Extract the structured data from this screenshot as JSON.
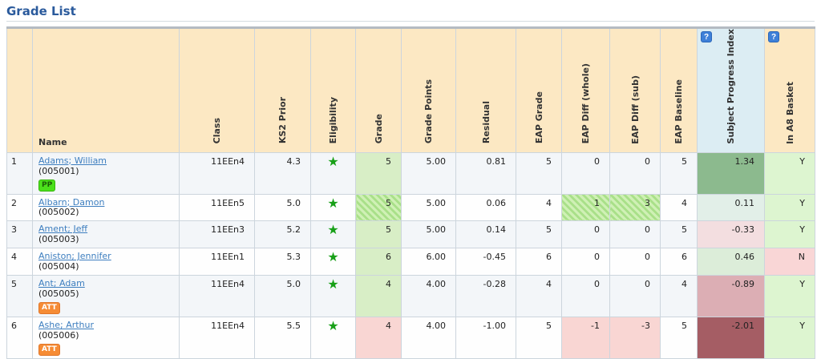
{
  "page": {
    "title": "Grade List"
  },
  "icons": {
    "help": "?",
    "eligibility_star": "★"
  },
  "colors": {
    "title_blue": "#2a5a9c",
    "header_cream": "#fce8c3",
    "spi_header_blue": "#dcedf3",
    "help_button_blue": "#3e80d8",
    "link_blue": "#3d7ebf",
    "star_green": "#18a018",
    "badge_pp_green": "#4be01b",
    "badge_att_orange": "#f68c35"
  },
  "table": {
    "columns": [
      {
        "key": "num",
        "label": "",
        "vertical": false,
        "help": false
      },
      {
        "key": "name",
        "label": "Name",
        "vertical": false,
        "help": false
      },
      {
        "key": "class",
        "label": "Class",
        "vertical": true,
        "help": false
      },
      {
        "key": "ks2",
        "label": "KS2 Prior",
        "vertical": true,
        "help": false
      },
      {
        "key": "elig",
        "label": "Eligibility",
        "vertical": true,
        "help": false
      },
      {
        "key": "grade",
        "label": "Grade",
        "vertical": true,
        "help": false
      },
      {
        "key": "points",
        "label": "Grade Points",
        "vertical": true,
        "help": false
      },
      {
        "key": "residual",
        "label": "Residual",
        "vertical": true,
        "help": false
      },
      {
        "key": "eap_grade",
        "label": "EAP Grade",
        "vertical": true,
        "help": false
      },
      {
        "key": "eap_diff_whole",
        "label": "EAP Diff (whole)",
        "vertical": true,
        "help": false
      },
      {
        "key": "eap_diff_sub",
        "label": "EAP Diff (sub)",
        "vertical": true,
        "help": false
      },
      {
        "key": "eap_baseline",
        "label": "EAP Baseline",
        "vertical": true,
        "help": false
      },
      {
        "key": "spi",
        "label": "Subject Progress Index",
        "vertical": true,
        "help": true
      },
      {
        "key": "a8",
        "label": "In A8 Basket",
        "vertical": true,
        "help": true
      }
    ],
    "rows": [
      {
        "num": "1",
        "name": "Adams; William",
        "id": "(005001)",
        "badges": [
          {
            "label": "PP",
            "type": "pp"
          }
        ],
        "class": "11EEn4",
        "ks2": "4.3",
        "eligible": true,
        "grade": "5",
        "grade_tone": "green",
        "points": "5.00",
        "residual": "0.81",
        "eap_grade": "5",
        "eap_diff_whole": "0",
        "eap_diff_whole_tone": "",
        "eap_diff_sub": "0",
        "eap_diff_sub_tone": "",
        "eap_baseline": "5",
        "spi": "1.34",
        "spi_color": "#8cba8e",
        "a8": "Y",
        "a8_tone": "green"
      },
      {
        "num": "2",
        "name": "Albarn; Damon",
        "id": "(005002)",
        "badges": [],
        "class": "11EEn5",
        "ks2": "5.0",
        "eligible": true,
        "grade": "5",
        "grade_tone": "hatch",
        "points": "5.00",
        "residual": "0.06",
        "eap_grade": "4",
        "eap_diff_whole": "1",
        "eap_diff_whole_tone": "hatch",
        "eap_diff_sub": "3",
        "eap_diff_sub_tone": "hatch",
        "eap_baseline": "4",
        "spi": "0.11",
        "spi_color": "#e2efe8",
        "a8": "Y",
        "a8_tone": "green"
      },
      {
        "num": "3",
        "name": "Ament; Jeff",
        "id": "(005003)",
        "badges": [],
        "class": "11EEn3",
        "ks2": "5.2",
        "eligible": true,
        "grade": "5",
        "grade_tone": "green",
        "points": "5.00",
        "residual": "0.14",
        "eap_grade": "5",
        "eap_diff_whole": "0",
        "eap_diff_whole_tone": "",
        "eap_diff_sub": "0",
        "eap_diff_sub_tone": "",
        "eap_baseline": "5",
        "spi": "-0.33",
        "spi_color": "#f3dee0",
        "a8": "Y",
        "a8_tone": "green"
      },
      {
        "num": "4",
        "name": "Aniston; Jennifer",
        "id": "(005004)",
        "badges": [],
        "class": "11EEn1",
        "ks2": "5.3",
        "eligible": true,
        "grade": "6",
        "grade_tone": "green",
        "points": "6.00",
        "residual": "-0.45",
        "eap_grade": "6",
        "eap_diff_whole": "0",
        "eap_diff_whole_tone": "",
        "eap_diff_sub": "0",
        "eap_diff_sub_tone": "",
        "eap_baseline": "6",
        "spi": "0.46",
        "spi_color": "#dcedd9",
        "a8": "N",
        "a8_tone": "pink"
      },
      {
        "num": "5",
        "name": "Ant; Adam",
        "id": "(005005)",
        "badges": [
          {
            "label": "ATT",
            "type": "att"
          }
        ],
        "class": "11EEn4",
        "ks2": "5.0",
        "eligible": true,
        "grade": "4",
        "grade_tone": "green",
        "points": "4.00",
        "residual": "-0.28",
        "eap_grade": "4",
        "eap_diff_whole": "0",
        "eap_diff_whole_tone": "",
        "eap_diff_sub": "0",
        "eap_diff_sub_tone": "",
        "eap_baseline": "4",
        "spi": "-0.89",
        "spi_color": "#dcaeb4",
        "a8": "Y",
        "a8_tone": "green"
      },
      {
        "num": "6",
        "name": "Ashe; Arthur",
        "id": "(005006)",
        "badges": [
          {
            "label": "ATT",
            "type": "att"
          }
        ],
        "class": "11EEn4",
        "ks2": "5.5",
        "eligible": true,
        "grade": "4",
        "grade_tone": "pink",
        "points": "4.00",
        "residual": "-1.00",
        "eap_grade": "5",
        "eap_diff_whole": "-1",
        "eap_diff_whole_tone": "pink",
        "eap_diff_sub": "-3",
        "eap_diff_sub_tone": "pink",
        "eap_baseline": "5",
        "spi": "-2.01",
        "spi_color": "#a55d64",
        "a8": "Y",
        "a8_tone": "green"
      }
    ]
  }
}
